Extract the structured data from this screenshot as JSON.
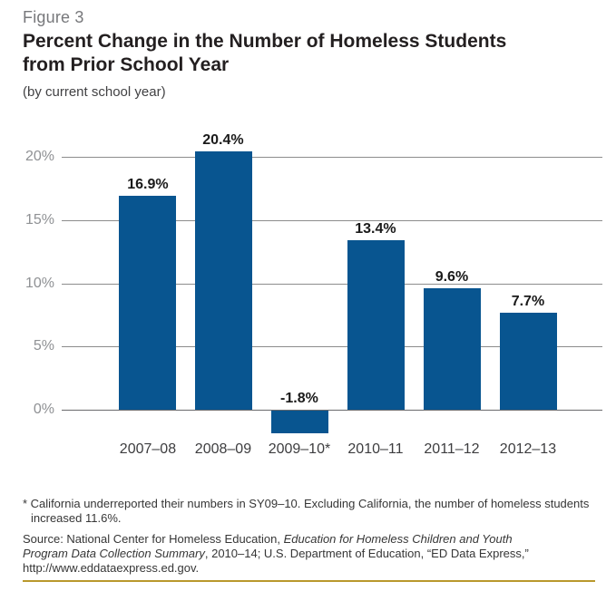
{
  "header": {
    "figure_label": "Figure 3",
    "title_line1": "Percent Change in the Number of Homeless Students",
    "title_line2": "from Prior School Year",
    "subtitle": "(by current school year)"
  },
  "chart_data": {
    "type": "bar",
    "title": "Percent Change in the Number of Homeless Students from Prior School Year (by current school year)",
    "categories": [
      "2007–08",
      "2008–09",
      "2009–10*",
      "2010–11",
      "2011–12",
      "2012–13"
    ],
    "values": [
      16.9,
      20.4,
      -1.8,
      13.4,
      9.6,
      7.7
    ],
    "data_labels": [
      "16.9%",
      "20.4%",
      "-1.8%",
      "13.4%",
      "9.6%",
      "7.7%"
    ],
    "y_ticks": [
      "0%",
      "5%",
      "10%",
      "15%",
      "20%"
    ],
    "y_tick_values": [
      0,
      5,
      10,
      15,
      20
    ],
    "ylim": [
      -3,
      21
    ],
    "xlabel": "",
    "ylabel": "",
    "grid": true,
    "legend": "none",
    "bar_color": "#085590",
    "gridline_color": "#8c8c8c",
    "zero_line_color": "#6a6a6c"
  },
  "footnotes": {
    "asterisk_note": "* California underreported their numbers in SY09–10. Excluding California, the number of homeless students increased 11.6%.",
    "source_prefix": "Source: National Center for Homeless Education, ",
    "source_italic": "Education for Homeless Children and Youth Program Data Collection Summary",
    "source_suffix": ", 2010–14; U.S. Department of Education, “ED Data Express,” http://www.eddataexpress.ed.gov."
  }
}
